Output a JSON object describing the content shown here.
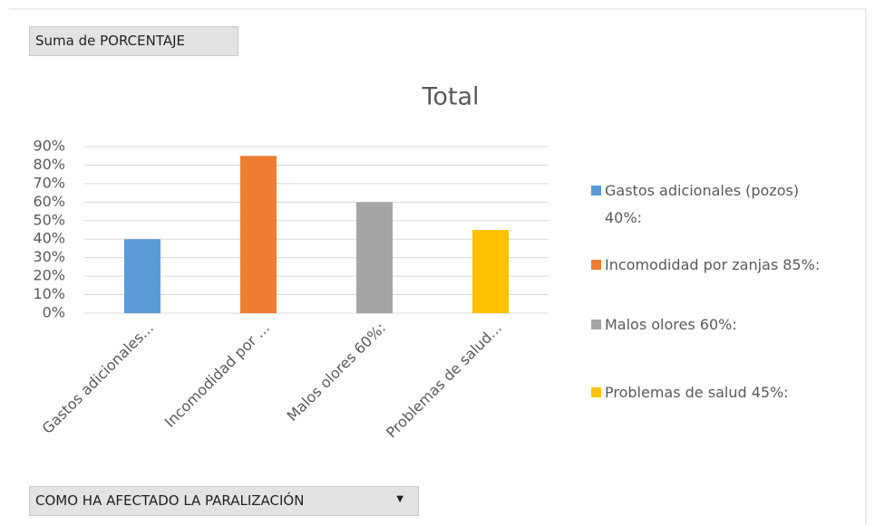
{
  "chart_data": {
    "type": "bar",
    "field_button": "Suma de PORCENTAJE",
    "title": "Total",
    "categories": [
      "Gastos adicionales...",
      "Incomodidad por ...",
      "Malos olores 60%:",
      "Problemas de salud..."
    ],
    "values": [
      40,
      85,
      60,
      45
    ],
    "colors": [
      "#5b9bd5",
      "#ed7d31",
      "#a5a5a5",
      "#ffc000"
    ],
    "legend": [
      "Gastos adicionales (pozos) 40%:",
      "Incomodidad por zanjas 85%:",
      "Malos olores  60%:",
      "Problemas de salud  45%:"
    ],
    "ylim": [
      0,
      90
    ],
    "yticks": [
      {
        "value": 0,
        "label": "0%"
      },
      {
        "value": 10,
        "label": "10%"
      },
      {
        "value": 20,
        "label": "20%"
      },
      {
        "value": 30,
        "label": "30%"
      },
      {
        "value": 40,
        "label": "40%"
      },
      {
        "value": 50,
        "label": "50%"
      },
      {
        "value": 60,
        "label": "60%"
      },
      {
        "value": 70,
        "label": "70%"
      },
      {
        "value": 80,
        "label": "80%"
      },
      {
        "value": 90,
        "label": "90%"
      }
    ],
    "grid": true,
    "axis_button": "COMO HA AFECTADO LA PARALIZACIÓN"
  }
}
